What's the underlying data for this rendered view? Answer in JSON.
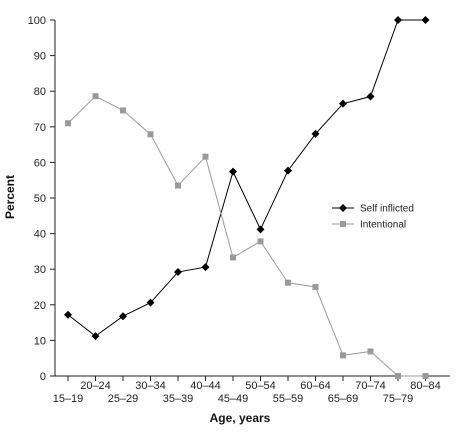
{
  "chart_data": {
    "type": "line",
    "categories": [
      "15–19",
      "20–24",
      "25–29",
      "30–34",
      "35–39",
      "40–44",
      "45–49",
      "50–54",
      "55–59",
      "60–64",
      "65–69",
      "70–74",
      "75–79",
      "80–84"
    ],
    "series": [
      {
        "name": "Self inflicted",
        "color": "#000000",
        "marker": "diamond",
        "values": [
          17.2,
          11.2,
          16.8,
          20.6,
          29.2,
          30.6,
          57.4,
          41.2,
          57.7,
          68.0,
          76.5,
          78.5,
          100,
          100
        ]
      },
      {
        "name": "Intentional",
        "color": "#9a9a9a",
        "marker": "square",
        "values": [
          71.0,
          78.6,
          74.6,
          67.9,
          53.5,
          61.6,
          33.3,
          37.8,
          26.2,
          25.0,
          5.8,
          6.9,
          0,
          0
        ]
      }
    ],
    "title": "",
    "xlabel": "Age, years",
    "ylabel": "Percent",
    "ylim": [
      0,
      100
    ],
    "yticks": [
      0,
      10,
      20,
      30,
      40,
      50,
      60,
      70,
      80,
      90,
      100
    ],
    "grid": false,
    "legend": "right"
  }
}
